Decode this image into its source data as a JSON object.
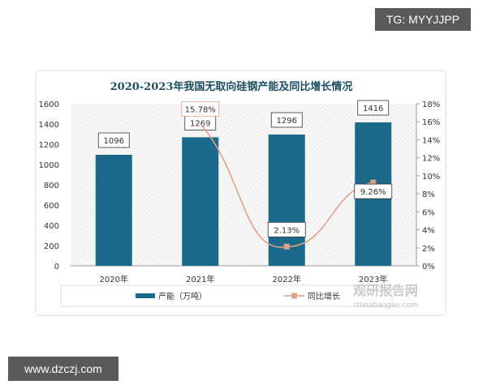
{
  "overlay": {
    "tg_label": "TG: MYYJJPP",
    "site_label": "www.dzczj.com"
  },
  "chart_data": {
    "type": "bar",
    "title": "2020-2023年我国无取向硅钢产能及同比增长情况",
    "categories": [
      "2020年",
      "2021年",
      "2022年",
      "2023年"
    ],
    "series": [
      {
        "name": "产能（万吨）",
        "type": "bar",
        "axis": "left",
        "values": [
          1096,
          1269,
          1296,
          1416
        ],
        "labels": [
          "1096",
          "1269",
          "1296",
          "1416"
        ],
        "color": "#1b6a8c"
      },
      {
        "name": "同比增长",
        "type": "line",
        "axis": "right",
        "values": [
          null,
          15.78,
          2.13,
          9.26
        ],
        "labels": [
          "",
          "15.78%",
          "2.13%",
          "9.26%"
        ],
        "color": "#e0a08a"
      }
    ],
    "y_left": {
      "range": [
        0,
        1600
      ],
      "ticks": [
        "0",
        "200",
        "400",
        "600",
        "800",
        "1000",
        "1200",
        "1400",
        "1600"
      ]
    },
    "y_right": {
      "range": [
        0,
        18
      ],
      "ticks": [
        "0%",
        "2%",
        "4%",
        "6%",
        "8%",
        "10%",
        "12%",
        "14%",
        "16%",
        "18%"
      ]
    },
    "legend_position": "bottom",
    "watermark": {
      "brand": "观研报告网",
      "url": "chinabaogao.com"
    }
  }
}
